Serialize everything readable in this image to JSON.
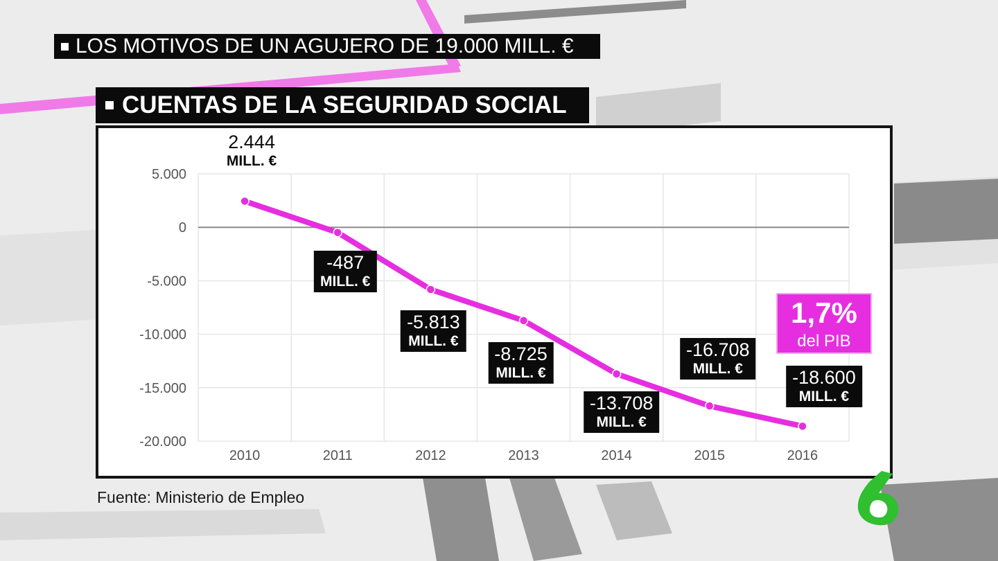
{
  "headline": "LOS MOTIVOS DE UN AGUJERO DE 19.000 MILL. €",
  "subheadline": "CUENTAS DE LA SEGURIDAD SOCIAL",
  "source": "Fuente: Ministerio de Empleo",
  "badge": {
    "value": "1,7%",
    "label": "del PIB"
  },
  "colors": {
    "line": "#e62ee0",
    "caption_bg": "#0b0b0b",
    "badge_bg": "#e62ee0"
  },
  "chart_data": {
    "type": "line",
    "title": "CUENTAS DE LA SEGURIDAD SOCIAL",
    "x": [
      "2010",
      "2011",
      "2012",
      "2013",
      "2014",
      "2015",
      "2016"
    ],
    "series": [
      {
        "values": [
          2444,
          -487,
          -5813,
          -8725,
          -13708,
          -16708,
          -18600
        ]
      }
    ],
    "point_labels": [
      {
        "value": "2.444",
        "unit": "MILL. €"
      },
      {
        "value": "-487",
        "unit": "MILL. €"
      },
      {
        "value": "-5.813",
        "unit": "MILL. €"
      },
      {
        "value": "-8.725",
        "unit": "MILL. €"
      },
      {
        "value": "-13.708",
        "unit": "MILL. €"
      },
      {
        "value": "-16.708",
        "unit": "MILL. €"
      },
      {
        "value": "-18.600",
        "unit": "MILL. €"
      }
    ],
    "y_ticks": [
      "5.000",
      "0",
      "-5.000",
      "-10.000",
      "-15.000",
      "-20.000"
    ],
    "y_tick_values": [
      5000,
      0,
      -5000,
      -10000,
      -15000,
      -20000
    ],
    "ylim": [
      -20000,
      5000
    ],
    "grid": true,
    "legend": "none"
  }
}
